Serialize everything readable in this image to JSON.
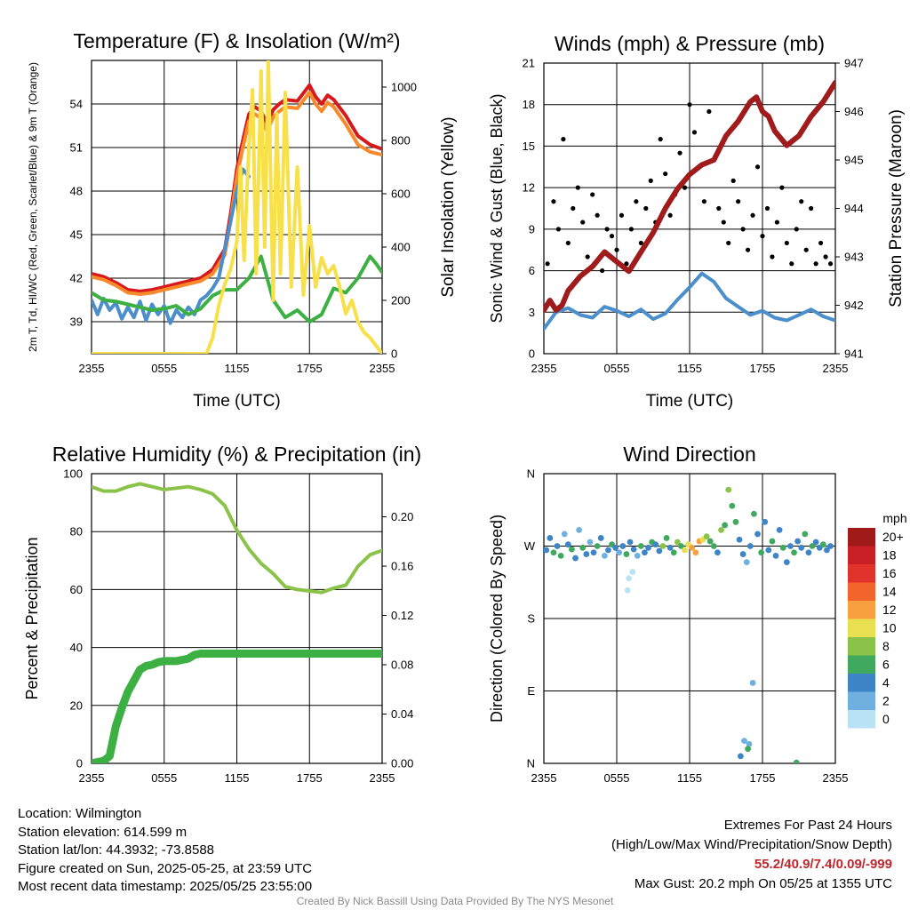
{
  "chart_data": [
    {
      "id": "temp",
      "type": "line",
      "title": "Temperature (F) & Insolation (W/m²)",
      "xlabel": "Time (UTC)",
      "ylabel": "2m T, Td, HI/WC (Red, Green, Scarlet/Blue) & 9m T (Orange)",
      "y2label": "Solar Insolation (Yellow)",
      "x_ticks": [
        "2355",
        "0555",
        "1155",
        "1755",
        "2355"
      ],
      "ylim": [
        36.8,
        57.0
      ],
      "y_ticks": [
        39,
        42,
        45,
        48,
        51,
        54
      ],
      "y2lim": [
        0,
        1100
      ],
      "y2_ticks": [
        0,
        200,
        400,
        600,
        800,
        1000
      ],
      "grid": true,
      "series": [
        {
          "name": "2m T",
          "color": "#d7191c",
          "axis": "left",
          "x": [
            0,
            1,
            2,
            3,
            4,
            5,
            6,
            7,
            8,
            9,
            10,
            11,
            11.5,
            12,
            12.5,
            13,
            13.5,
            14,
            14.5,
            15,
            15.5,
            16,
            17,
            18,
            18.5,
            19,
            19.5,
            20,
            21,
            22,
            23,
            24
          ],
          "y": [
            42.3,
            42.1,
            41.7,
            41.2,
            41.1,
            41.2,
            41.4,
            41.6,
            41.8,
            42.0,
            42.6,
            44.0,
            46.5,
            49.5,
            51.5,
            53.3,
            53.8,
            53.5,
            52.6,
            53.6,
            54.0,
            54.3,
            54.2,
            55.3,
            54.5,
            54.0,
            54.6,
            54.3,
            53.2,
            51.8,
            51.2,
            50.9
          ]
        },
        {
          "name": "9m T",
          "color": "#f88a2c",
          "axis": "left",
          "x": [
            0,
            1,
            2,
            3,
            4,
            5,
            6,
            7,
            8,
            9,
            10,
            11,
            11.5,
            12,
            12.5,
            13,
            13.5,
            14,
            14.5,
            15,
            15.5,
            16,
            17,
            18,
            18.5,
            19,
            19.5,
            20,
            21,
            22,
            23,
            24
          ],
          "y": [
            42.1,
            41.9,
            41.5,
            41.0,
            40.9,
            41.0,
            41.2,
            41.4,
            41.6,
            41.8,
            42.3,
            43.6,
            46.0,
            49.0,
            51.0,
            52.8,
            53.3,
            53.0,
            52.1,
            53.1,
            53.5,
            53.8,
            53.7,
            54.8,
            54.0,
            53.5,
            54.1,
            53.8,
            52.6,
            51.2,
            50.7,
            50.5
          ]
        },
        {
          "name": "HI/WC",
          "color": "#4a8fcb",
          "axis": "left",
          "x": [
            0,
            0.5,
            1,
            1.5,
            2,
            2.5,
            3,
            3.5,
            4,
            4.5,
            5,
            5.5,
            6,
            6.5,
            7,
            7.5,
            8,
            8.5,
            9,
            9.5,
            10,
            10.5,
            11,
            11.5,
            12,
            12.5,
            13
          ],
          "y": [
            40.5,
            39.5,
            40.6,
            39.8,
            40.3,
            39.2,
            40.0,
            39.3,
            40.4,
            39.1,
            40.2,
            39.5,
            40.1,
            38.9,
            39.8,
            39.3,
            40.0,
            39.5,
            40.5,
            40.8,
            41.3,
            42.0,
            44.0,
            46.0,
            48.0,
            49.5,
            49.0
          ]
        },
        {
          "name": "Td",
          "color": "#3cb043",
          "axis": "left",
          "x": [
            0,
            1,
            2,
            3,
            4,
            5,
            6,
            7,
            8,
            9,
            10,
            11,
            12,
            13,
            14,
            15,
            16,
            17,
            18,
            19,
            20,
            21,
            22,
            23,
            23.5,
            24
          ],
          "y": [
            41.0,
            40.5,
            40.4,
            40.2,
            40.0,
            39.8,
            39.9,
            40.1,
            39.5,
            39.9,
            40.8,
            41.2,
            41.2,
            42.0,
            43.5,
            40.5,
            39.3,
            39.8,
            39.0,
            39.5,
            41.3,
            41.0,
            42.0,
            43.5,
            43.0,
            42.4
          ]
        },
        {
          "name": "Solar Insolation",
          "color": "#f7e04a",
          "axis": "right",
          "x": [
            0,
            9.5,
            10,
            10.5,
            11,
            11.5,
            12,
            12.3,
            12.6,
            13,
            13.3,
            13.6,
            14,
            14.3,
            14.6,
            15,
            15.3,
            15.6,
            16,
            16.5,
            17,
            17.5,
            18,
            18.5,
            19,
            19.5,
            20,
            20.5,
            21,
            21.5,
            22,
            22.5,
            23,
            23.5,
            24
          ],
          "y": [
            0,
            0,
            60,
            180,
            260,
            320,
            420,
            700,
            350,
            780,
            990,
            300,
            1060,
            400,
            1100,
            200,
            900,
            300,
            980,
            250,
            700,
            220,
            480,
            250,
            360,
            300,
            330,
            250,
            150,
            200,
            120,
            80,
            60,
            30,
            0
          ]
        }
      ]
    },
    {
      "id": "wind",
      "type": "line",
      "title": "Winds (mph) & Pressure (mb)",
      "xlabel": "Time (UTC)",
      "ylabel": "Sonic Wind & Gust (Blue, Black)",
      "y2label": "Station Pressure (Maroon)",
      "x_ticks": [
        "2355",
        "0555",
        "1155",
        "1755",
        "2355"
      ],
      "ylim": [
        0,
        21
      ],
      "y_ticks": [
        0,
        3,
        6,
        9,
        12,
        15,
        18,
        21
      ],
      "y2lim": [
        941,
        947
      ],
      "y2_ticks": [
        941,
        942,
        943,
        944,
        945,
        946,
        947
      ],
      "grid": true,
      "series": [
        {
          "name": "Sonic Wind",
          "color": "#4a8fcb",
          "axis": "left",
          "x": [
            0,
            1,
            2,
            3,
            4,
            5,
            6,
            7,
            8,
            9,
            10,
            11,
            12,
            13,
            14,
            15,
            16,
            17,
            18,
            19,
            20,
            21,
            22,
            23,
            24
          ],
          "y": [
            1.8,
            3.0,
            3.3,
            2.8,
            2.6,
            3.4,
            3.1,
            2.7,
            3.2,
            2.5,
            2.9,
            3.9,
            4.8,
            5.8,
            5.2,
            4.0,
            3.4,
            2.8,
            3.1,
            2.6,
            2.4,
            2.8,
            3.2,
            2.7,
            2.4
          ]
        },
        {
          "name": "Gust",
          "color": "#000000",
          "axis": "left",
          "mode": "markers",
          "x": [
            0.3,
            0.8,
            1.2,
            1.6,
            2.0,
            2.4,
            2.8,
            3.2,
            3.6,
            4.0,
            4.4,
            4.8,
            5.2,
            5.6,
            6.0,
            6.4,
            6.8,
            7.2,
            7.6,
            8.0,
            8.4,
            8.8,
            9.2,
            9.6,
            10.0,
            10.4,
            10.8,
            11.2,
            11.6,
            12.0,
            12.4,
            12.8,
            13.2,
            13.6,
            14.0,
            14.4,
            14.8,
            15.2,
            15.6,
            16.0,
            16.4,
            16.8,
            17.2,
            17.6,
            18.0,
            18.4,
            18.8,
            19.2,
            19.6,
            20.0,
            20.4,
            20.8,
            21.2,
            21.6,
            22.0,
            22.4,
            22.8,
            23.2,
            23.6
          ],
          "y": [
            6.5,
            11.0,
            9.0,
            15.5,
            8.0,
            10.5,
            12.0,
            9.5,
            7.0,
            11.5,
            10.0,
            6.0,
            9.0,
            8.5,
            7.5,
            10.0,
            6.5,
            9.0,
            11.0,
            8.0,
            10.5,
            12.5,
            9.5,
            15.5,
            13.0,
            10.0,
            11.5,
            14.5,
            12.0,
            18.0,
            16.0,
            13.5,
            11.0,
            17.5,
            14.0,
            10.5,
            9.5,
            8.0,
            12.5,
            11.0,
            9.0,
            7.5,
            10.0,
            13.5,
            8.5,
            10.5,
            7.0,
            9.5,
            12.0,
            8.0,
            6.5,
            9.0,
            11.0,
            7.5,
            10.5,
            6.5,
            8.0,
            7.0,
            6.5
          ]
        },
        {
          "name": "Station Pressure",
          "color": "#a01c1c",
          "axis": "right",
          "x": [
            0,
            0.5,
            1,
            1.5,
            2,
            3,
            4,
            5,
            6,
            7,
            8,
            9,
            10,
            11,
            12,
            13,
            14,
            15,
            16,
            17,
            17.5,
            18,
            18.5,
            19,
            20,
            21,
            22,
            23,
            24
          ],
          "y": [
            941.9,
            942.1,
            941.9,
            942.0,
            942.3,
            942.6,
            942.8,
            943.1,
            942.9,
            942.7,
            943.1,
            943.5,
            944.0,
            944.4,
            944.7,
            944.9,
            945.0,
            945.5,
            945.8,
            946.2,
            946.3,
            946.0,
            945.9,
            945.6,
            945.3,
            945.5,
            945.9,
            946.2,
            946.6
          ]
        }
      ]
    },
    {
      "id": "rh",
      "type": "line",
      "title": "Relative Humidity (%) & Precipitation (in)",
      "xlabel": "",
      "ylabel": "Percent & Precipitation",
      "x_ticks": [
        "2355",
        "0555",
        "1155",
        "1755",
        "2355"
      ],
      "ylim": [
        0,
        100
      ],
      "y_ticks": [
        0,
        20,
        40,
        60,
        80,
        100
      ],
      "y2lim": [
        0,
        0.235
      ],
      "y2_ticks": [
        "0.00",
        "0.04",
        "0.08",
        "0.12",
        "0.16",
        "0.20"
      ],
      "grid": true,
      "series": [
        {
          "name": "Relative Humidity",
          "color": "#8bc34a",
          "axis": "left",
          "x": [
            0,
            1,
            2,
            3,
            4,
            5,
            6,
            7,
            8,
            9,
            10,
            11,
            12,
            13,
            14,
            15,
            16,
            17,
            18,
            19,
            20,
            21,
            22,
            23,
            24
          ],
          "y": [
            95.5,
            94,
            94,
            95.5,
            96.5,
            95.5,
            94.5,
            95,
            95.5,
            94.5,
            93,
            89,
            80.5,
            74,
            69,
            65.5,
            61,
            60,
            59.5,
            59,
            60.5,
            61.5,
            68,
            72,
            73.5
          ]
        },
        {
          "name": "Precipitation",
          "color": "#3cb043",
          "axis": "right",
          "x": [
            0,
            1,
            1.5,
            2,
            2.5,
            3,
            3.5,
            4,
            4.5,
            5,
            5.5,
            6,
            7,
            8,
            8.5,
            9,
            10,
            12,
            14,
            16,
            18,
            20,
            22,
            24
          ],
          "y": [
            0,
            0.002,
            0.006,
            0.03,
            0.045,
            0.058,
            0.067,
            0.076,
            0.079,
            0.08,
            0.082,
            0.083,
            0.083,
            0.085,
            0.088,
            0.089,
            0.089,
            0.089,
            0.089,
            0.089,
            0.089,
            0.089,
            0.089,
            0.089
          ]
        }
      ]
    },
    {
      "id": "dir",
      "type": "scatter",
      "title": "Wind Direction",
      "xlabel": "",
      "ylabel": "Direction (Colored By Speed)",
      "x_ticks": [
        "2355",
        "0555",
        "1155",
        "1755",
        "2355"
      ],
      "ylim": [
        0,
        360
      ],
      "y_ticks": [
        "N",
        "E",
        "S",
        "W",
        "N"
      ],
      "grid": true,
      "colorbar": {
        "title": "mph",
        "labels": [
          "20+",
          "18",
          "16",
          "14",
          "12",
          "10",
          "8",
          "6",
          "4",
          "2",
          "0"
        ],
        "colors": [
          "#a11a1a",
          "#c91f26",
          "#e2322c",
          "#f2642b",
          "#f8a040",
          "#e8e050",
          "#8bc34a",
          "#41a85f",
          "#3d85c6",
          "#6fb0e0",
          "#b9e2f5"
        ]
      },
      "points": {
        "x": [
          0.2,
          0.5,
          0.8,
          1.1,
          1.4,
          1.7,
          2.0,
          2.3,
          2.6,
          2.9,
          3.2,
          3.5,
          3.8,
          4.1,
          4.4,
          4.7,
          5.0,
          5.3,
          5.6,
          5.9,
          6.2,
          6.5,
          6.8,
          7.1,
          7.4,
          7.7,
          8.0,
          8.3,
          8.6,
          8.9,
          9.2,
          9.5,
          9.8,
          10.1,
          10.4,
          10.7,
          11.0,
          11.3,
          11.6,
          11.9,
          12.2,
          12.5,
          12.8,
          13.1,
          13.4,
          13.7,
          14.0,
          14.3,
          14.6,
          14.9,
          15.2,
          15.5,
          15.8,
          16.1,
          16.4,
          16.7,
          17.0,
          17.3,
          17.6,
          17.9,
          18.2,
          18.5,
          18.8,
          19.1,
          19.4,
          19.7,
          20.0,
          20.3,
          20.6,
          20.9,
          21.2,
          21.5,
          21.8,
          22.1,
          22.4,
          22.7,
          23.0,
          23.3,
          23.6,
          16.2,
          16.5,
          16.9,
          17.2,
          7.0,
          6.9,
          7.3,
          16.8,
          20.8
        ],
        "y": [
          265,
          280,
          262,
          270,
          258,
          285,
          272,
          266,
          255,
          290,
          268,
          260,
          275,
          262,
          270,
          280,
          258,
          265,
          272,
          268,
          262,
          270,
          260,
          275,
          266,
          258,
          270,
          262,
          268,
          275,
          272,
          264,
          270,
          280,
          268,
          262,
          275,
          270,
          265,
          272,
          268,
          262,
          276,
          278,
          282,
          276,
          270,
          262,
          290,
          296,
          340,
          320,
          300,
          278,
          260,
          250,
          270,
          310,
          285,
          262,
          300,
          265,
          276,
          258,
          290,
          268,
          250,
          270,
          262,
          276,
          268,
          285,
          262,
          270,
          275,
          268,
          272,
          265,
          270,
          9,
          28,
          24,
          100,
          230,
          215,
          238,
          18,
          1
        ],
        "speeds": [
          2,
          2,
          3,
          2,
          3,
          1,
          2,
          3,
          2,
          1,
          3,
          2,
          1,
          2,
          3,
          2,
          1,
          2,
          3,
          2,
          1,
          2,
          3,
          2,
          2,
          1,
          3,
          2,
          2,
          3,
          2,
          2,
          4,
          3,
          2,
          3,
          4,
          3,
          5,
          5,
          6,
          6,
          6,
          5,
          4,
          3,
          3,
          2,
          4,
          3,
          4,
          3,
          3,
          2,
          2,
          1,
          2,
          3,
          2,
          3,
          2,
          2,
          3,
          2,
          2,
          3,
          2,
          2,
          3,
          2,
          2,
          3,
          2,
          3,
          2,
          2,
          3,
          2,
          2,
          2,
          1,
          1,
          1,
          0,
          0,
          0,
          3,
          3
        ]
      }
    }
  ],
  "footer": {
    "location": "Location: Wilmington",
    "elevation": "Station elevation: 614.599 m",
    "latlon": "Station lat/lon: 44.3932; -73.8588",
    "created": "Figure created on Sun, 2025-05-25, at 23:59 UTC",
    "recent": "Most recent data timestamp: 2025/05/25 23:55:00",
    "extremes_title": "Extremes For Past 24 Hours",
    "extremes_desc": "(High/Low/Max Wind/Precipitation/Snow Depth)",
    "extremes_values": "55.2/40.9/7.4/0.09/-999",
    "max_gust": "Max Gust: 20.2 mph On 05/25 at 1355 UTC",
    "credit": "Created By Nick Bassill Using Data Provided By The NYS Mesonet"
  }
}
